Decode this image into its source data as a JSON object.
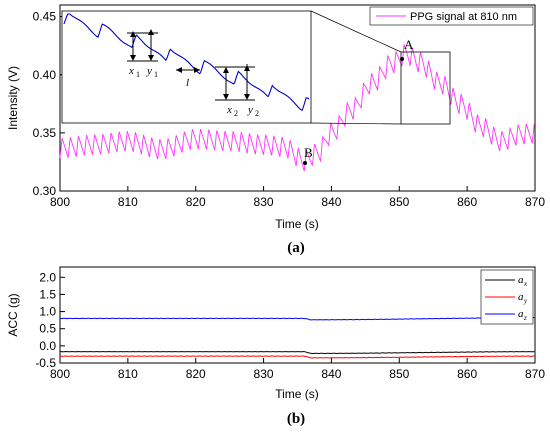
{
  "chart_data": [
    {
      "type": "line",
      "xlabel": "Time (s)",
      "ylabel": "Intensity (V)",
      "xlim": [
        800,
        870
      ],
      "ylim": [
        0.3,
        0.46
      ],
      "x_ticks": [
        "800",
        "810",
        "820",
        "830",
        "840",
        "850",
        "860",
        "870"
      ],
      "y_ticks": [
        "0.30",
        "0.35",
        "0.40",
        "0.45"
      ],
      "panel_label": "(a)",
      "series": [
        {
          "name": "PPG signal at 810 nm",
          "color": "#ff33ff",
          "x": [
            800,
            805,
            810,
            815,
            820,
            825,
            830,
            833,
            836,
            838,
            840,
            843,
            846,
            849,
            851,
            853,
            856,
            859,
            862,
            865,
            868,
            870
          ],
          "y": [
            0.337,
            0.34,
            0.343,
            0.336,
            0.345,
            0.343,
            0.34,
            0.338,
            0.326,
            0.333,
            0.35,
            0.37,
            0.393,
            0.41,
            0.418,
            0.411,
            0.393,
            0.375,
            0.356,
            0.343,
            0.349,
            0.35
          ],
          "oscillation_period_s": 1.2,
          "oscillation_amplitude": 0.011
        }
      ],
      "annotations": [
        {
          "text": "A",
          "x": 850.2,
          "y": 0.421
        },
        {
          "text": "B",
          "x": 836.2,
          "y": 0.326
        }
      ],
      "inset": {
        "zoom_from": [
          850.2,
          0.366,
          857.2,
          0.422
        ],
        "labels": [
          "x",
          "1",
          "y",
          "1",
          "l",
          "x",
          "2",
          "y",
          "2"
        ],
        "color": "#0000cc"
      }
    },
    {
      "type": "line",
      "xlabel": "Time (s)",
      "ylabel": "ACC (g)",
      "xlim": [
        800,
        870
      ],
      "ylim": [
        -0.5,
        2.3
      ],
      "x_ticks": [
        "800",
        "810",
        "820",
        "830",
        "840",
        "850",
        "860",
        "870"
      ],
      "y_ticks": [
        "-0.5",
        "0.0",
        "0.5",
        "1.0",
        "1.5",
        "2.0"
      ],
      "panel_label": "(b)",
      "series": [
        {
          "name": "a",
          "sub": "x",
          "color": "#000000",
          "x": [
            800,
            836,
            837,
            870
          ],
          "y": [
            -0.17,
            -0.17,
            -0.22,
            -0.17
          ]
        },
        {
          "name": "a",
          "sub": "y",
          "color": "#ff0000",
          "x": [
            800,
            836,
            837,
            870
          ],
          "y": [
            -0.3,
            -0.3,
            -0.35,
            -0.3
          ]
        },
        {
          "name": "a",
          "sub": "z",
          "color": "#0000ff",
          "x": [
            800,
            836,
            837,
            870
          ],
          "y": [
            0.8,
            0.8,
            0.76,
            0.82
          ]
        }
      ]
    }
  ]
}
